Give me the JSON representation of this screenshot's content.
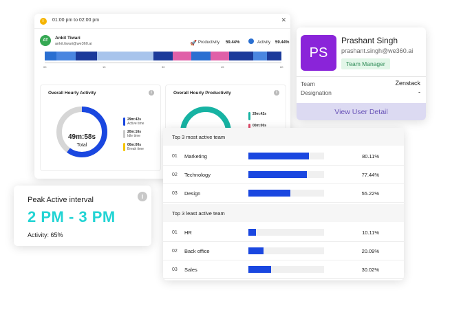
{
  "session": {
    "time_range": "01:00 pm to 02:00 pm",
    "user_initials": "AT",
    "user_name": "Ankit Tiwari",
    "user_email": "ankit.tiwari@we360.ai",
    "productivity_label": "Productivity",
    "productivity_value": "59.44%",
    "activity_label": "Activity",
    "activity_value": "59.44%",
    "timeline_ticks": [
      "00",
      "15",
      "30",
      "45",
      "60"
    ],
    "timeline_segments": [
      {
        "color": "#2a6fd1",
        "fraction": 0.05
      },
      {
        "color": "#4a86e0",
        "fraction": 0.08
      },
      {
        "color": "#1b3a9a",
        "fraction": 0.09
      },
      {
        "color": "#a8c4ec",
        "fraction": 0.24
      },
      {
        "color": "#1b3a9a",
        "fraction": 0.08
      },
      {
        "color": "#e060a8",
        "fraction": 0.08
      },
      {
        "color": "#2a6fd1",
        "fraction": 0.08
      },
      {
        "color": "#e060a8",
        "fraction": 0.08
      },
      {
        "color": "#1b3a9a",
        "fraction": 0.1
      },
      {
        "color": "#4a86e0",
        "fraction": 0.06
      },
      {
        "color": "#1b3a9a",
        "fraction": 0.06
      }
    ]
  },
  "activity_panel": {
    "title": "Overall Hourly Activity",
    "total_time": "49m:58s",
    "total_label": "Total",
    "active_fraction": 0.6,
    "legend": [
      {
        "value": "29m:42s",
        "label": "Active time",
        "color": "#1a47e0"
      },
      {
        "value": "20m:16s",
        "label": "Idle time",
        "color": "#c9c9c9"
      },
      {
        "value": "00m:00s",
        "label": "Break time",
        "color": "#f5c400"
      }
    ]
  },
  "productivity_panel": {
    "title": "Overall Hourly Productivity",
    "legend": [
      {
        "value": "29m:42s",
        "label": "",
        "color": "#17b3a3"
      },
      {
        "value": "00m:00s",
        "label": "",
        "color": "#e04a6a"
      }
    ]
  },
  "user_card": {
    "initials": "PS",
    "name": "Prashant Singh",
    "email": "prashant.singh@we360.ai",
    "role": "Team Manager",
    "team_label": "Team",
    "team_value": "Zenstack",
    "designation_label": "Designation",
    "designation_value": "-",
    "button_label": "View User Detail"
  },
  "peak": {
    "title": "Peak Active  interval",
    "range": "2 PM - 3 PM",
    "activity": "Activity: 65%"
  },
  "teams": {
    "most_active_title": "Top 3 most active team",
    "most_active": [
      {
        "rank": "01",
        "name": "Marketing",
        "pct_label": "80.11%",
        "pct": 80.11
      },
      {
        "rank": "02",
        "name": "Technology",
        "pct_label": "77.44%",
        "pct": 77.44
      },
      {
        "rank": "03",
        "name": "Design",
        "pct_label": "55.22%",
        "pct": 55.22
      }
    ],
    "least_active_title": "Top 3 least active team",
    "least_active": [
      {
        "rank": "01",
        "name": "HR",
        "pct_label": "10.11%",
        "pct": 10.11
      },
      {
        "rank": "02",
        "name": "Back office",
        "pct_label": "20.09%",
        "pct": 20.09
      },
      {
        "rank": "03",
        "name": "Sales",
        "pct_label": "30.02%",
        "pct": 30.02
      }
    ]
  }
}
